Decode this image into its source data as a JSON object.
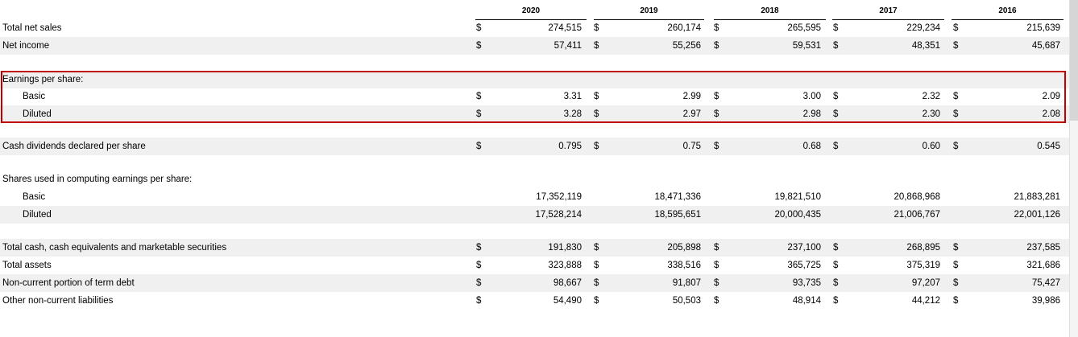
{
  "years": [
    "2020",
    "2019",
    "2018",
    "2017",
    "2016"
  ],
  "rows": [
    {
      "label": "Total net sales",
      "values": [
        "274,515",
        "260,174",
        "265,595",
        "229,234",
        "215,639"
      ],
      "currency": true,
      "indent": false,
      "shade": false
    },
    {
      "label": "Net income",
      "values": [
        "57,411",
        "55,256",
        "59,531",
        "48,351",
        "45,687"
      ],
      "currency": true,
      "indent": false,
      "shade": true
    },
    {
      "label": "Earnings per share:",
      "values": [],
      "currency": false,
      "indent": false,
      "shade": true
    },
    {
      "label": "Basic",
      "values": [
        "3.31",
        "2.99",
        "3.00",
        "2.32",
        "2.09"
      ],
      "currency": true,
      "indent": true,
      "shade": false
    },
    {
      "label": "Diluted",
      "values": [
        "3.28",
        "2.97",
        "2.98",
        "2.30",
        "2.08"
      ],
      "currency": true,
      "indent": true,
      "shade": true
    },
    {
      "label": "Cash dividends declared per share",
      "values": [
        "0.795",
        "0.75",
        "0.68",
        "0.60",
        "0.545"
      ],
      "currency": true,
      "indent": false,
      "shade": true
    },
    {
      "label": "Shares used in computing earnings per share:",
      "values": [],
      "currency": false,
      "indent": false,
      "shade": false
    },
    {
      "label": "Basic",
      "values": [
        "17,352,119",
        "18,471,336",
        "19,821,510",
        "20,868,968",
        "21,883,281"
      ],
      "currency": false,
      "indent": true,
      "shade": false
    },
    {
      "label": "Diluted",
      "values": [
        "17,528,214",
        "18,595,651",
        "20,000,435",
        "21,006,767",
        "22,001,126"
      ],
      "currency": false,
      "indent": true,
      "shade": true
    },
    {
      "label": "Total cash, cash equivalents and marketable securities",
      "values": [
        "191,830",
        "205,898",
        "237,100",
        "268,895",
        "237,585"
      ],
      "currency": true,
      "indent": false,
      "shade": true
    },
    {
      "label": "Total assets",
      "values": [
        "323,888",
        "338,516",
        "365,725",
        "375,319",
        "321,686"
      ],
      "currency": true,
      "indent": false,
      "shade": false
    },
    {
      "label": "Non-current portion of term debt",
      "values": [
        "98,667",
        "91,807",
        "93,735",
        "97,207",
        "75,427"
      ],
      "currency": true,
      "indent": false,
      "shade": true
    },
    {
      "label": "Other non-current liabilities",
      "values": [
        "54,490",
        "50,503",
        "48,914",
        "44,212",
        "39,986"
      ],
      "currency": true,
      "indent": false,
      "shade": false
    }
  ],
  "currency_symbol": "$",
  "highlight_color": "#c00000",
  "shade_color": "#f0f0f0"
}
